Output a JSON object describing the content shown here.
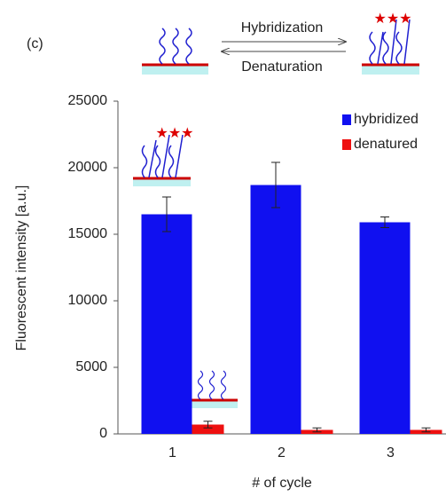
{
  "chart_data": {
    "type": "bar",
    "panel_label": "(c)",
    "scheme": {
      "forward": "Hybridization",
      "reverse": "Denaturation"
    },
    "ylabel": "Fluorescent intensity [a.u.]",
    "xlabel": "# of cycle",
    "categories": [
      "1",
      "2",
      "3"
    ],
    "series": [
      {
        "name": "hybridized",
        "color": "#1010f0",
        "values": [
          16500,
          18700,
          15900
        ],
        "errors": [
          1300,
          1700,
          400
        ]
      },
      {
        "name": "denatured",
        "color": "#ee1010",
        "values": [
          700,
          300,
          300
        ],
        "errors": [
          250,
          150,
          150
        ]
      }
    ],
    "ylim": [
      0,
      25000
    ],
    "yticks": [
      0,
      5000,
      10000,
      15000,
      20000,
      25000
    ],
    "legend": "upper right"
  }
}
